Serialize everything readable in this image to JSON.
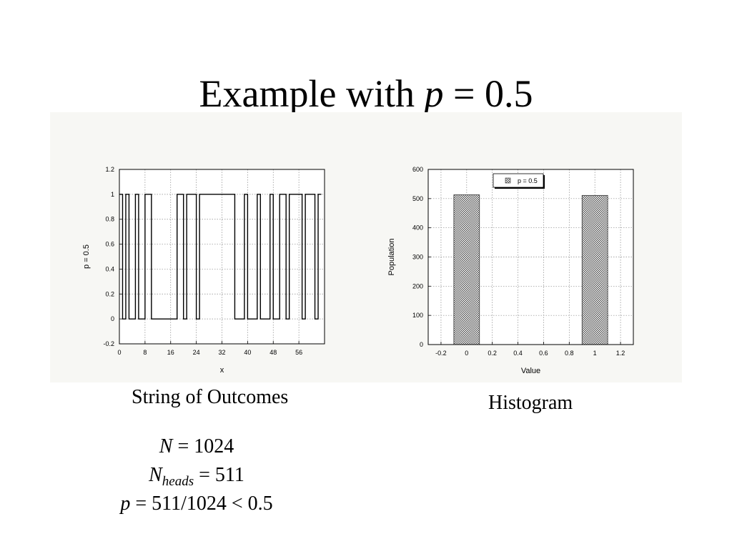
{
  "slide": {
    "title_prefix": "Example with ",
    "title_var": "p",
    "title_suffix": " = 0.5"
  },
  "captions": {
    "left": "String of Outcomes",
    "right": "Histogram"
  },
  "stats": {
    "n_var": "N",
    "n_eq": " = 1024",
    "nheads_var": "N",
    "nheads_sub": "heads",
    "nheads_eq": " = 511",
    "p_var": "p",
    "p_eq": " = 511/1024 < 0.5"
  },
  "chart_data": [
    {
      "type": "line",
      "xlabel": "x",
      "ylabel": "p = 0.5",
      "xlim": [
        0,
        64
      ],
      "ylim": [
        -0.2,
        1.2
      ],
      "xticks": [
        "0",
        "8",
        "16",
        "24",
        "32",
        "40",
        "48",
        "56"
      ],
      "yticks": [
        "-0.2",
        "0",
        "0.2",
        "0.4",
        "0.6",
        "0.8",
        "1",
        "1.2"
      ],
      "grid": true,
      "color": "#000000",
      "series": [
        {
          "x": [
            0,
            1,
            1,
            2,
            2,
            3,
            3,
            5,
            5,
            6,
            6,
            8,
            8,
            10,
            10,
            18,
            18,
            20,
            20,
            21,
            21,
            24,
            24,
            25,
            25,
            36,
            36,
            39,
            39,
            40,
            40,
            43,
            43,
            44,
            44,
            47,
            47,
            48,
            48,
            50,
            50,
            52,
            52,
            53,
            53,
            57,
            57,
            58,
            58,
            61,
            61,
            62,
            62,
            63
          ],
          "y": [
            1,
            1,
            0,
            0,
            1,
            1,
            0,
            0,
            1,
            1,
            0,
            0,
            1,
            1,
            0,
            0,
            1,
            1,
            0,
            0,
            1,
            1,
            0,
            0,
            1,
            1,
            0,
            0,
            1,
            1,
            0,
            0,
            1,
            1,
            0,
            0,
            1,
            1,
            0,
            0,
            1,
            1,
            0,
            0,
            1,
            1,
            0,
            0,
            1,
            1,
            0,
            0,
            1,
            1
          ]
        }
      ]
    },
    {
      "type": "bar",
      "xlabel": "Value",
      "ylabel": "Population",
      "xlim": [
        -0.3,
        1.3
      ],
      "ylim": [
        0,
        600
      ],
      "xticks": [
        "-0.2",
        "0",
        "0.2",
        "0.4",
        "0.6",
        "0.8",
        "1",
        "1.2"
      ],
      "yticks": [
        "0",
        "100",
        "200",
        "300",
        "400",
        "500",
        "600"
      ],
      "grid": true,
      "legend": "top-left",
      "bar_width": 0.2,
      "series": [
        {
          "name": "p = 0.5",
          "x": [
            0,
            1
          ],
          "values": [
            513,
            511
          ]
        }
      ]
    }
  ]
}
